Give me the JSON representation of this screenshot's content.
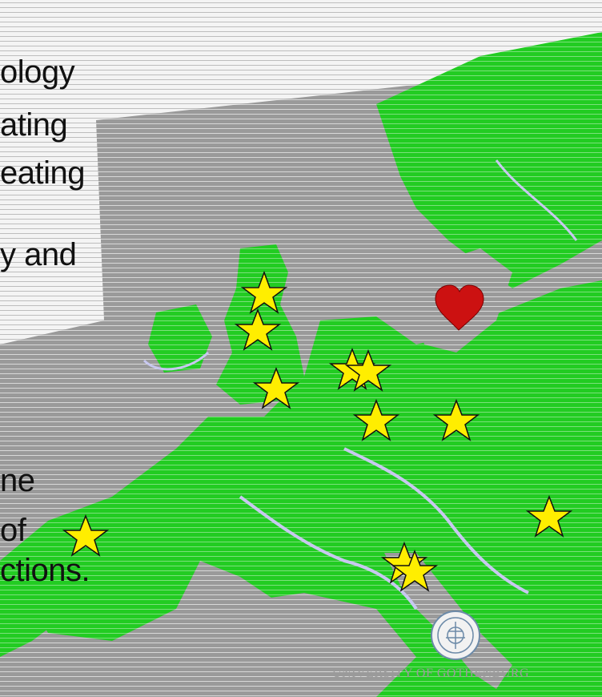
{
  "slide": {
    "text_lines": [
      "ology",
      "ating",
      "eating",
      "y and",
      "ne",
      "of",
      "ctions."
    ]
  },
  "map": {
    "land_color": "#22cc22",
    "sea_color": "#9a9a9a",
    "river_color": "#c8c8f0",
    "marker_star_color": "#ffee00",
    "marker_heart_color": "#cc1111",
    "star_markers": [
      "star-marker",
      "star-marker",
      "star-marker",
      "star-marker",
      "star-marker",
      "star-marker",
      "star-marker",
      "star-marker",
      "star-marker",
      "star-marker",
      "star-marker",
      "star-marker"
    ],
    "heart_marker": "heart-marker"
  },
  "footer": {
    "university_name": "UNIVERSITY OF GOTHENBURG",
    "logo": "university-seal-logo"
  }
}
